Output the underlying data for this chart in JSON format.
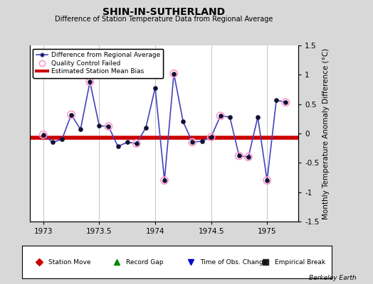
{
  "title": "SHIN-IN-SUTHERLAND",
  "subtitle": "Difference of Station Temperature Data from Regional Average",
  "ylabel": "Monthly Temperature Anomaly Difference (°C)",
  "xlim": [
    1972.88,
    1975.28
  ],
  "ylim": [
    -1.5,
    1.5
  ],
  "xticks": [
    1973,
    1973.5,
    1974,
    1974.5,
    1975
  ],
  "xtick_labels": [
    "1973",
    "1973.5",
    "1974",
    "1974.5",
    "1975"
  ],
  "yticks": [
    -1.5,
    -1.0,
    -0.5,
    0.0,
    0.5,
    1.0,
    1.5
  ],
  "ytick_labels": [
    "-1.5",
    "-1",
    "-0.5",
    "0",
    "0.5",
    "1",
    "1.5"
  ],
  "bias": -0.07,
  "bias_color": "#cc0000",
  "line_color": "#4444bb",
  "marker_color": "#111133",
  "qc_color": "#ff99cc",
  "background_color": "#d8d8d8",
  "plot_bg_color": "#ffffff",
  "berkeley_earth_text": "Berkeley Earth",
  "x_data": [
    1973.0,
    1973.083,
    1973.167,
    1973.25,
    1973.333,
    1973.417,
    1973.5,
    1973.583,
    1973.667,
    1973.75,
    1973.833,
    1973.917,
    1974.0,
    1974.083,
    1974.167,
    1974.25,
    1974.333,
    1974.417,
    1974.5,
    1974.583,
    1974.667,
    1974.75,
    1974.833,
    1974.917,
    1975.0,
    1975.083,
    1975.167
  ],
  "y_data": [
    -0.02,
    -0.15,
    -0.1,
    0.32,
    0.07,
    0.88,
    0.13,
    0.12,
    -0.22,
    -0.15,
    -0.17,
    0.1,
    0.78,
    -0.8,
    1.02,
    0.2,
    -0.15,
    -0.13,
    -0.06,
    0.3,
    0.28,
    -0.38,
    -0.4,
    0.28,
    -0.8,
    0.57,
    0.53
  ],
  "qc_indices": [
    0,
    3,
    5,
    7,
    10,
    13,
    14,
    16,
    18,
    19,
    21,
    22,
    24,
    26
  ],
  "legend_bottom": [
    {
      "label": "Station Move",
      "color": "#cc0000",
      "marker": "D"
    },
    {
      "label": "Record Gap",
      "color": "#008800",
      "marker": "^"
    },
    {
      "label": "Time of Obs. Change",
      "color": "#0000cc",
      "marker": "v"
    },
    {
      "label": "Empirical Break",
      "color": "#222222",
      "marker": "s"
    }
  ],
  "title_fontsize": 10,
  "subtitle_fontsize": 7,
  "tick_fontsize": 7.5,
  "ylabel_fontsize": 7.5,
  "legend_fontsize": 6.5
}
